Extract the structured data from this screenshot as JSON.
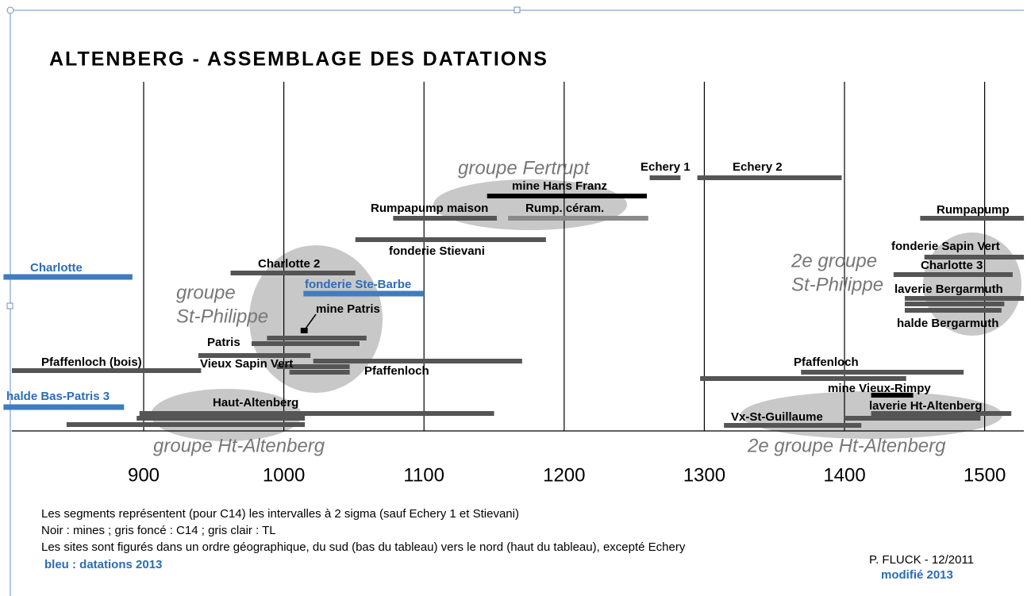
{
  "chart_data": {
    "type": "timeline",
    "title": "ALTENBERG - ASSEMBLAGE DES DATATIONS",
    "xlim": [
      800,
      1530
    ],
    "xticks": [
      900,
      1000,
      1100,
      1200,
      1300,
      1400,
      1500
    ],
    "segments": [
      {
        "start": 800,
        "end": 892,
        "color": "#3f7cc0"
      },
      {
        "start": 1014,
        "end": 1100,
        "color": "#3f7cc0"
      },
      {
        "start": 800,
        "end": 886,
        "color": "#3f7cc0"
      },
      {
        "start": 1145,
        "end": 1259,
        "color": "#000000"
      },
      {
        "start": 1419,
        "end": 1449,
        "color": "#000000"
      },
      {
        "start": 1012,
        "end": 1017,
        "color": "#000000"
      },
      {
        "start": 1261,
        "end": 1283,
        "color": "#555555"
      },
      {
        "start": 1295,
        "end": 1398,
        "color": "#555555"
      },
      {
        "start": 1078,
        "end": 1152,
        "color": "#555555"
      },
      {
        "start": 1160,
        "end": 1260,
        "color": "#8a8a8a"
      },
      {
        "start": 1051,
        "end": 1187,
        "color": "#555555"
      },
      {
        "start": 962,
        "end": 1051,
        "color": "#555555"
      },
      {
        "start": 988,
        "end": 1059,
        "color": "#555555"
      },
      {
        "start": 977,
        "end": 1054,
        "color": "#555555"
      },
      {
        "start": 939,
        "end": 1019,
        "color": "#555555"
      },
      {
        "start": 806,
        "end": 941,
        "color": "#555555"
      },
      {
        "start": 1021,
        "end": 1170,
        "color": "#555555"
      },
      {
        "start": 995,
        "end": 1047,
        "color": "#555555"
      },
      {
        "start": 1004,
        "end": 1047,
        "color": "#555555"
      },
      {
        "start": 897,
        "end": 1150,
        "color": "#555555"
      },
      {
        "start": 895,
        "end": 1015,
        "color": "#555555"
      },
      {
        "start": 845,
        "end": 1015,
        "color": "#555555"
      },
      {
        "start": 1454,
        "end": 1528,
        "color": "#555555"
      },
      {
        "start": 1457,
        "end": 1528,
        "color": "#555555"
      },
      {
        "start": 1435,
        "end": 1520,
        "color": "#555555"
      },
      {
        "start": 1443,
        "end": 1528,
        "color": "#555555"
      },
      {
        "start": 1443,
        "end": 1514,
        "color": "#555555"
      },
      {
        "start": 1443,
        "end": 1512,
        "color": "#555555"
      },
      {
        "start": 1369,
        "end": 1485,
        "color": "#555555"
      },
      {
        "start": 1297,
        "end": 1444,
        "color": "#555555"
      },
      {
        "start": 1419,
        "end": 1519,
        "color": "#555555"
      },
      {
        "start": 1400,
        "end": 1497,
        "color": "#555555"
      },
      {
        "start": 1314,
        "end": 1412,
        "color": "#555555"
      }
    ],
    "site_labels": [
      "Charlotte",
      "fonderie Ste-Barbe",
      "halde Bas-Patris 3",
      "Echery 1",
      "Echery 2",
      "mine Hans Franz",
      "Rumpapump maison",
      "Rump. céram.",
      "fonderie Stievani",
      "Charlotte 2",
      "mine Patris",
      "Patris",
      "Vieux Sapin Vert",
      "Pfaffenloch (bois)",
      "Pfaffenloch",
      "Haut-Altenberg",
      "Rumpapump",
      "fonderie Sapin Vert",
      "Charlotte 3",
      "laverie Bergarmuth",
      "halde Bergarmuth",
      "Pfaffenloch",
      "mine Vieux-Rimpy",
      "laverie Ht-Altenberg",
      "Vx-St-Guillaume"
    ],
    "group_labels": [
      "groupe Fertrupt",
      "groupe",
      "St-Philippe",
      "groupe Ht-Altenberg",
      "2e groupe",
      "St-Philippe",
      "2e groupe Ht-Altenberg"
    ],
    "notes": [
      "Les segments représentent (pour C14) les intervalles à 2 sigma (sauf Echery 1 et Stievani)",
      "Noir : mines ; gris foncé : C14 ; gris clair : TL",
      "Les sites sont figurés dans un ordre géographique, du sud (bas du tableau) vers le nord (haut du tableau), excepté Echery"
    ],
    "blue_note": "bleu : datations 2013",
    "author": "P. FLUCK - 12/2011",
    "modified": "modifié 2013"
  }
}
